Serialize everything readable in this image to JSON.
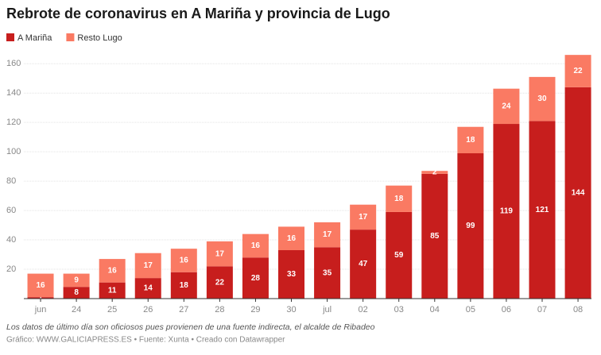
{
  "chart_data": {
    "type": "stacked_bar",
    "title": "Rebrote de coronavirus en A Mariña y provincia de Lugo",
    "categories": [
      "jun",
      "24",
      "25",
      "26",
      "27",
      "28",
      "29",
      "30",
      "jul",
      "02",
      "03",
      "04",
      "05",
      "06",
      "07",
      "08"
    ],
    "series": [
      {
        "name": "A Mariña",
        "color": "#c71e1d",
        "values": [
          1,
          8,
          11,
          14,
          18,
          22,
          28,
          33,
          35,
          47,
          59,
          85,
          99,
          119,
          121,
          144
        ]
      },
      {
        "name": "Resto Lugo",
        "color": "#fa7a63",
        "values": [
          16,
          9,
          16,
          17,
          16,
          17,
          16,
          16,
          17,
          17,
          18,
          2,
          18,
          24,
          30,
          22
        ]
      }
    ],
    "ylim": [
      0,
      165
    ],
    "yticks": [
      20,
      40,
      60,
      80,
      100,
      120,
      140,
      160
    ],
    "grid": true,
    "notes": "Los datos de último día son oficiosos pues provienen de una fuente indirecta, el alcalde de Ribadeo",
    "source": "Gráfico: WWW.GALICIAPRESS.ES • Fuente: Xunta • Creado con Datawrapper"
  }
}
